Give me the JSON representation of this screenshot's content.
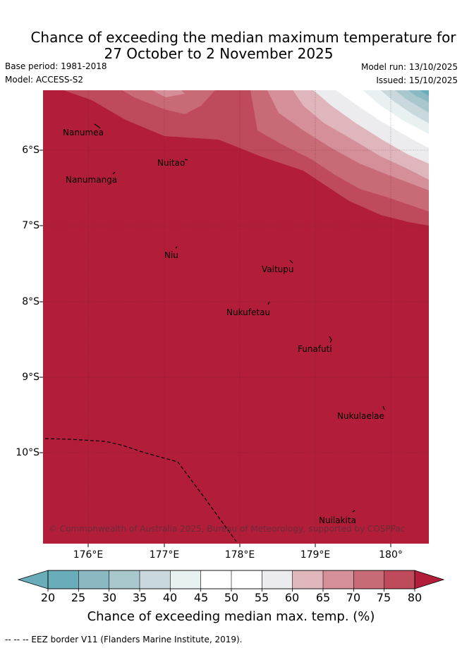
{
  "title": {
    "line1": "Chance of exceeding the median maximum temperature for",
    "line2": "27 October to 2 November 2025"
  },
  "meta": {
    "base_period": "Base period: 1981-2018",
    "model": "Model: ACCESS-S2",
    "model_run": "Model run: 13/10/2025",
    "issued": "Issued: 15/10/2025"
  },
  "axes": {
    "lat_labels": [
      "6°S",
      "7°S",
      "8°S",
      "9°S",
      "10°S"
    ],
    "lon_labels": [
      "176°E",
      "177°E",
      "178°E",
      "179°E",
      "180°"
    ]
  },
  "places": [
    "Nanumea",
    "Nuitao",
    "Nanumanga",
    "Niu",
    "Vaitupu",
    "Nukufetau",
    "Funafuti",
    "Nukulaelae",
    "Nuilakita"
  ],
  "copyright": "© Commonwealth of Australia 2025, Bureau of Meteorology, supported by COSPPac",
  "colorbar": {
    "ticks": [
      "20",
      "25",
      "30",
      "35",
      "40",
      "45",
      "50",
      "55",
      "60",
      "65",
      "70",
      "75",
      "80"
    ],
    "colors": [
      "#69adbb",
      "#8ab8c3",
      "#a9c8ce",
      "#c8d8dd",
      "#e9f0f2",
      "#ffffff",
      "#ffffff",
      "#ececee",
      "#e0b6bd",
      "#d48f99",
      "#c86b77",
      "#bf4a5b",
      "#b21e39"
    ],
    "title": "Chance of exceeding median max. temp. (%)"
  },
  "footer": "--  --  -- EEZ border V11 (Flanders Marine Institute, 2019)."
}
